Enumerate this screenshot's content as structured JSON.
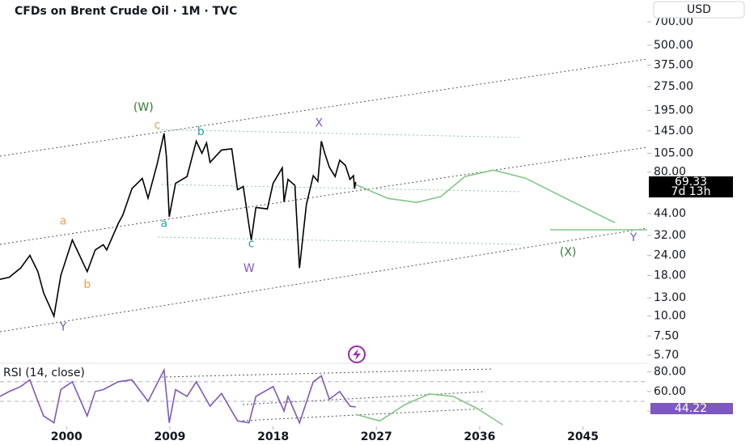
{
  "header": {
    "title": "CFDs on Brent Crude Oil · 1M · TVC",
    "currency": "USD",
    "countdown": "7d 13h"
  },
  "chart_data": [
    {
      "type": "line",
      "log_scale": true,
      "xlim": [
        1994.2,
        2050.6
      ],
      "xticks": [
        2000,
        2009,
        2018,
        2027,
        2036,
        2045
      ],
      "ylim": [
        5.3,
        760
      ],
      "yticks": [
        {
          "value": 5.7,
          "label": "5.70"
        },
        {
          "value": 7.5,
          "label": "7.50"
        },
        {
          "value": 10,
          "label": "10.00"
        },
        {
          "value": 13,
          "label": "13.00"
        },
        {
          "value": 18,
          "label": "18.00"
        },
        {
          "value": 24,
          "label": "24.00"
        },
        {
          "value": 32,
          "label": "32.00"
        },
        {
          "value": 44,
          "label": "44.00"
        },
        {
          "value": 80,
          "label": "80.00"
        },
        {
          "value": 105,
          "label": "105.00"
        },
        {
          "value": 145,
          "label": "145.00"
        },
        {
          "value": 195,
          "label": "195.00"
        },
        {
          "value": 275,
          "label": "275.00"
        },
        {
          "value": 375,
          "label": "375.00"
        },
        {
          "value": 500,
          "label": "500.00"
        },
        {
          "value": 700,
          "label": "700.00"
        }
      ],
      "series": [
        {
          "color": "#000000",
          "x": [
            1994.2,
            1995,
            1996,
            1996.8,
            1997.5,
            1998,
            1998.9,
            1999.5,
            2000.5,
            2001.8,
            2002.5,
            2003.2,
            2003.5,
            2004.5,
            2004.9,
            2005.7,
            2006.6,
            2007.1,
            2007.9,
            2008.5,
            2008.7,
            2008.95,
            2009.5,
            2010.5,
            2011.3,
            2011.8,
            2012.2,
            2012.5,
            2013.5,
            2014.4,
            2014.9,
            2015.4,
            2015.9,
            2016.1,
            2016.5,
            2017.5,
            2018.0,
            2018.8,
            2018.95,
            2019.3,
            2019.9,
            2020.3,
            2020.9,
            2021.5,
            2021.9,
            2022.2,
            2022.5,
            2022.9,
            2023.4,
            2023.8,
            2024.3,
            2024.7,
            2025.0,
            2025.1,
            2025.2
          ],
          "values": [
            17,
            17.5,
            20,
            24,
            19,
            14,
            10,
            18,
            30,
            19,
            26,
            28,
            26,
            38,
            43,
            63,
            73,
            55,
            90,
            140,
            100,
            42,
            68,
            75,
            125,
            105,
            122,
            92,
            110,
            112,
            62,
            65,
            37,
            30,
            48,
            47,
            68,
            85,
            52,
            72,
            66,
            20,
            50,
            76,
            70,
            125,
            105,
            86,
            75,
            95,
            88,
            72,
            76,
            63,
            69.33
          ]
        },
        {
          "color": "#81c784",
          "x": [
            2025.2,
            2028.0,
            2030.5,
            2032.6,
            2034.7,
            2037.2,
            2040.0,
            2043.5,
            2047.8
          ],
          "values": [
            66.8,
            54.7,
            51.6,
            56.1,
            75,
            82.4,
            73.3,
            54.7,
            38.5
          ]
        }
      ],
      "annotations": [
        {
          "text": "(W)",
          "x": 2006.7,
          "y": 203,
          "color": "#2e7d32"
        },
        {
          "text": "c",
          "x": 2007.9,
          "y": 157,
          "color": "#f0a050"
        },
        {
          "text": "b",
          "x": 2011.7,
          "y": 143,
          "color": "#26a69a"
        },
        {
          "text": "X",
          "x": 2022.0,
          "y": 162,
          "color": "#7e57c2"
        },
        {
          "text": "a",
          "x": 1999.7,
          "y": 39.4,
          "color": "#f0a050"
        },
        {
          "text": "a",
          "x": 2008.5,
          "y": 38,
          "color": "#26a69a"
        },
        {
          "text": "b",
          "x": 2001.8,
          "y": 15.7,
          "color": "#f0a050"
        },
        {
          "text": "Y",
          "x": 1999.7,
          "y": 8.5,
          "color": "#7e57c2"
        },
        {
          "text": "c",
          "x": 2016.1,
          "y": 28.4,
          "color": "#26a69a"
        },
        {
          "text": "W",
          "x": 2015.9,
          "y": 19.8,
          "color": "#7e57c2"
        },
        {
          "text": "(X)",
          "x": 2043.7,
          "y": 25,
          "color": "#2e7d32"
        },
        {
          "text": "Y",
          "x": 2049.4,
          "y": 30.9,
          "color": "#7e57c2"
        }
      ]
    },
    {
      "type": "line",
      "title": "RSI (14, close)",
      "xlim": [
        1994.2,
        2050.6
      ],
      "ylim": [
        26,
        88
      ],
      "yticks": [
        {
          "value": 40,
          "label": "40.00"
        },
        {
          "value": 60,
          "label": "60.00"
        },
        {
          "value": 80,
          "label": "80.00"
        }
      ],
      "levels": [
        70,
        50
      ],
      "series": [
        {
          "color": "#7e57c2",
          "x": [
            1994.2,
            1995,
            1996,
            1996.8,
            1997.5,
            1998,
            1998.9,
            1999.5,
            2000.5,
            2001.8,
            2002.5,
            2003.2,
            2004.5,
            2005.7,
            2007.1,
            2008.5,
            2008.95,
            2009.5,
            2010.5,
            2011.3,
            2012.5,
            2013.5,
            2014.9,
            2015.9,
            2016.5,
            2018.0,
            2018.95,
            2019.3,
            2020.3,
            2021.5,
            2022.2,
            2022.9,
            2023.8,
            2024.7,
            2025.2
          ],
          "values": [
            55,
            60,
            65,
            72,
            50,
            35,
            28,
            62,
            70,
            35,
            60,
            62,
            70,
            72,
            50,
            82,
            28,
            62,
            55,
            70,
            45,
            58,
            30,
            28,
            55,
            65,
            40,
            55,
            28,
            70,
            76,
            52,
            60,
            45,
            44.22
          ]
        },
        {
          "color": "#81c784",
          "x": [
            2025.2,
            2027.3,
            2029.5,
            2031.6,
            2033.7,
            2035.8,
            2038.0
          ],
          "values": [
            36.7,
            30,
            46.7,
            57.5,
            55,
            42.5,
            26
          ]
        }
      ]
    }
  ]
}
